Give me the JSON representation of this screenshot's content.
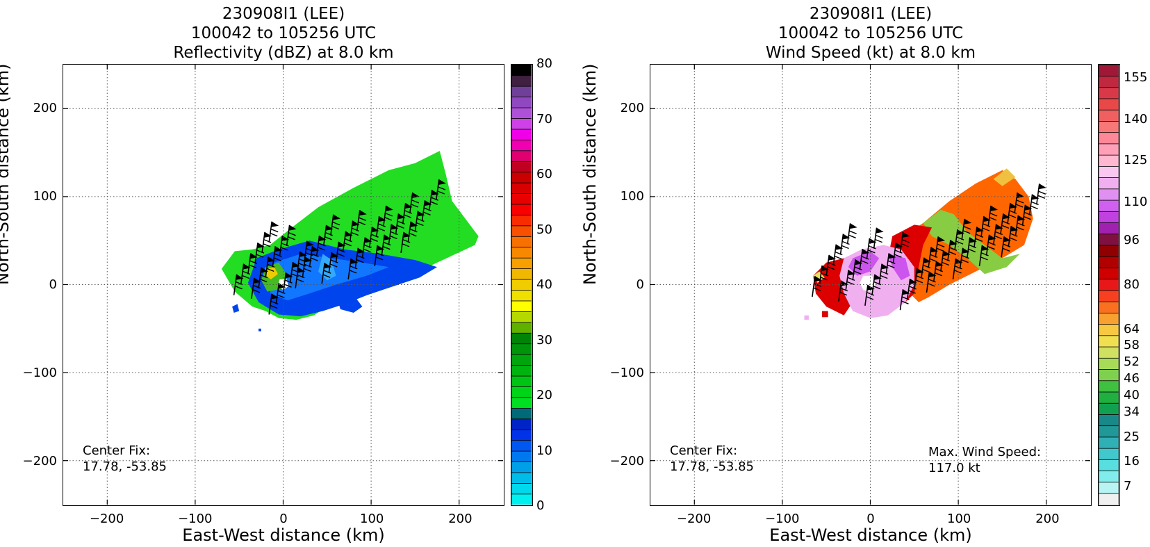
{
  "chart_data": [
    {
      "type": "heatmap",
      "title": [
        "230908I1 (LEE)",
        "100042 to 105256 UTC",
        "Reflectivity (dBZ) at 8.0 km"
      ],
      "xlabel": "East-West distance (km)",
      "ylabel": "North-South distance (km)",
      "xlim": [
        -250,
        250
      ],
      "ylim": [
        -250,
        250
      ],
      "xticks": [
        -200,
        -100,
        0,
        100,
        200
      ],
      "yticks": [
        -200,
        -100,
        0,
        100,
        200
      ],
      "xtick_labels": [
        "−200",
        "−100",
        "0",
        "100",
        "200"
      ],
      "ytick_labels": [
        "−200",
        "−100",
        "0",
        "100",
        "200"
      ],
      "grid": true,
      "annotations": [
        {
          "lines": [
            "Center Fix:",
            "17.78, -53.85"
          ],
          "position": "bottom-left"
        }
      ],
      "colorbar": {
        "range": [
          0,
          80
        ],
        "tick_values": [
          0,
          10,
          20,
          30,
          40,
          50,
          60,
          70,
          80
        ],
        "tick_labels": [
          "0",
          "10",
          "20",
          "30",
          "40",
          "50",
          "60",
          "70",
          "80"
        ],
        "colors": [
          "#00f0f0",
          "#00d8ec",
          "#00bce8",
          "#00a0e8",
          "#0078f0",
          "#0058f0",
          "#0032e8",
          "#0024c8",
          "#006a78",
          "#00e020",
          "#00d418",
          "#00c414",
          "#00b410",
          "#00a40c",
          "#00940a",
          "#008408",
          "#60b000",
          "#b4d800",
          "#ffff00",
          "#f0e000",
          "#f0cc00",
          "#f0b800",
          "#f8a000",
          "#f88800",
          "#f87000",
          "#f85000",
          "#f82c00",
          "#f80000",
          "#e80000",
          "#d80000",
          "#c80000",
          "#c00020",
          "#e00070",
          "#f000b0",
          "#f000e8",
          "#d040e8",
          "#b050d8",
          "#9048c0",
          "#704098",
          "#402040",
          "#000000"
        ]
      },
      "regions": [
        {
          "color": "#22dd22",
          "points": [
            [
              -70,
              18
            ],
            [
              -55,
              38
            ],
            [
              -35,
              40
            ],
            [
              -15,
              45
            ],
            [
              10,
              65
            ],
            [
              40,
              88
            ],
            [
              80,
              110
            ],
            [
              120,
              130
            ],
            [
              150,
              138
            ],
            [
              178,
              152
            ],
            [
              185,
              125
            ],
            [
              192,
              95
            ],
            [
              222,
              55
            ],
            [
              218,
              45
            ],
            [
              190,
              32
            ],
            [
              160,
              18
            ],
            [
              130,
              5
            ],
            [
              100,
              -10
            ],
            [
              75,
              -20
            ],
            [
              50,
              -25
            ],
            [
              35,
              -35
            ],
            [
              15,
              -40
            ],
            [
              -5,
              -38
            ],
            [
              -20,
              -30
            ],
            [
              -35,
              -25
            ],
            [
              -55,
              -8
            ]
          ]
        },
        {
          "color": "#0044ee",
          "points": [
            [
              -30,
              30
            ],
            [
              -5,
              40
            ],
            [
              30,
              50
            ],
            [
              70,
              40
            ],
            [
              110,
              35
            ],
            [
              150,
              28
            ],
            [
              175,
              20
            ],
            [
              155,
              8
            ],
            [
              125,
              -2
            ],
            [
              95,
              -12
            ],
            [
              70,
              -22
            ],
            [
              45,
              -30
            ],
            [
              20,
              -36
            ],
            [
              -5,
              -34
            ],
            [
              -28,
              -20
            ],
            [
              -40,
              2
            ]
          ]
        },
        {
          "color": "#1177ff",
          "points": [
            [
              -10,
              25
            ],
            [
              20,
              35
            ],
            [
              55,
              30
            ],
            [
              90,
              25
            ],
            [
              120,
              20
            ],
            [
              95,
              10
            ],
            [
              60,
              0
            ],
            [
              30,
              -10
            ],
            [
              5,
              -18
            ],
            [
              -15,
              -10
            ]
          ]
        },
        {
          "color": "#33aaff",
          "points": [
            [
              45,
              35
            ],
            [
              55,
              28
            ],
            [
              60,
              10
            ],
            [
              50,
              5
            ],
            [
              40,
              15
            ]
          ]
        },
        {
          "color": "#0044ee",
          "points": [
            [
              60,
              -10
            ],
            [
              75,
              -5
            ],
            [
              90,
              -25
            ],
            [
              80,
              -32
            ],
            [
              65,
              -28
            ]
          ]
        },
        {
          "color": "#44bb22",
          "points": [
            [
              -20,
              20
            ],
            [
              -5,
              25
            ],
            [
              5,
              10
            ],
            [
              -2,
              -5
            ],
            [
              -18,
              -8
            ],
            [
              -25,
              5
            ]
          ]
        },
        {
          "color": "#eecc00",
          "points": [
            [
              -18,
              18
            ],
            [
              -10,
              20
            ],
            [
              -6,
              12
            ],
            [
              -14,
              6
            ],
            [
              -20,
              10
            ]
          ]
        },
        {
          "color": "#ffffff",
          "points": [
            [
              -4,
              6
            ],
            [
              4,
              6
            ],
            [
              6,
              -2
            ],
            [
              0,
              -6
            ],
            [
              -6,
              -2
            ]
          ]
        },
        {
          "color": "#0044ee",
          "points": [
            [
              -58,
              -25
            ],
            [
              -52,
              -22
            ],
            [
              -50,
              -30
            ],
            [
              -56,
              -32
            ]
          ]
        },
        {
          "color": "#0044ee",
          "points": [
            [
              -28,
              -50
            ],
            [
              -25,
              -50
            ],
            [
              -25,
              -53
            ],
            [
              -28,
              -53
            ]
          ]
        }
      ],
      "barb_rows": [
        [
          -40,
          12
        ],
        [
          -20,
          8
        ],
        [
          0,
          -10
        ],
        [
          30,
          20
        ],
        [
          60,
          25
        ],
        [
          90,
          30
        ],
        [
          120,
          45
        ],
        [
          150,
          60
        ]
      ]
    },
    {
      "type": "heatmap",
      "title": [
        "230908I1 (LEE)",
        "100042 to 105256 UTC",
        "Wind Speed (kt) at 8.0 km"
      ],
      "xlabel": "East-West distance (km)",
      "ylabel": "North-South distance (km)",
      "xlim": [
        -250,
        250
      ],
      "ylim": [
        -250,
        250
      ],
      "xticks": [
        -200,
        -100,
        0,
        100,
        200
      ],
      "yticks": [
        -200,
        -100,
        0,
        100,
        200
      ],
      "xtick_labels": [
        "−200",
        "−100",
        "0",
        "100",
        "200"
      ],
      "ytick_labels": [
        "−200",
        "−100",
        "0",
        "100",
        "200"
      ],
      "grid": true,
      "annotations": [
        {
          "lines": [
            "Center Fix:",
            "17.78, -53.85"
          ],
          "position": "bottom-left"
        },
        {
          "lines": [
            "Max. Wind Speed:",
            "117.0 kt"
          ],
          "position": "bottom-right"
        }
      ],
      "colorbar": {
        "range": [
          0,
          160
        ],
        "tick_values": [
          7,
          16,
          25,
          34,
          40,
          46,
          52,
          58,
          64,
          80,
          96,
          110,
          125,
          140,
          155
        ],
        "tick_labels": [
          "7",
          "16",
          "25",
          "34",
          "40",
          "46",
          "52",
          "58",
          "64",
          "80",
          "96",
          "110",
          "125",
          "140",
          "155"
        ],
        "colors": [
          "#f0f0f0",
          "#b8f4f4",
          "#80ecec",
          "#58dede",
          "#40c8cc",
          "#30b0b4",
          "#209898",
          "#188888",
          "#10a050",
          "#20b040",
          "#40c040",
          "#80d050",
          "#a8dc58",
          "#d0e060",
          "#f0e050",
          "#f8c840",
          "#f8a030",
          "#f87020",
          "#f84020",
          "#e81818",
          "#d00000",
          "#b00000",
          "#900000",
          "#801040",
          "#a020b0",
          "#c040e0",
          "#d060f0",
          "#e090f0",
          "#f0b0f0",
          "#f8c8f0",
          "#ffb8d0",
          "#ffa0b8",
          "#ff8898",
          "#f87878",
          "#f06060",
          "#e84848",
          "#d83848",
          "#c02840",
          "#a01838"
        ]
      },
      "regions": [
        {
          "color": "#ff6600",
          "points": [
            [
              30,
              50
            ],
            [
              60,
              70
            ],
            [
              90,
              95
            ],
            [
              120,
              115
            ],
            [
              150,
              130
            ],
            [
              165,
              120
            ],
            [
              180,
              100
            ],
            [
              185,
              75
            ],
            [
              175,
              45
            ],
            [
              150,
              30
            ],
            [
              120,
              15
            ],
            [
              90,
              0
            ],
            [
              65,
              -15
            ],
            [
              55,
              -20
            ],
            [
              45,
              -10
            ],
            [
              35,
              15
            ]
          ]
        },
        {
          "color": "#88cc44",
          "points": [
            [
              60,
              70
            ],
            [
              80,
              85
            ],
            [
              95,
              80
            ],
            [
              110,
              60
            ],
            [
              130,
              45
            ],
            [
              150,
              30
            ],
            [
              170,
              35
            ],
            [
              155,
              20
            ],
            [
              130,
              12
            ],
            [
              110,
              30
            ],
            [
              90,
              45
            ],
            [
              70,
              55
            ]
          ]
        },
        {
          "color": "#f0c040",
          "points": [
            [
              140,
              120
            ],
            [
              155,
              132
            ],
            [
              165,
              122
            ],
            [
              150,
              112
            ]
          ]
        },
        {
          "color": "#dd0000",
          "points": [
            [
              25,
              55
            ],
            [
              50,
              68
            ],
            [
              70,
              65
            ],
            [
              60,
              45
            ],
            [
              55,
              20
            ],
            [
              50,
              -10
            ],
            [
              40,
              -20
            ],
            [
              30,
              0
            ],
            [
              20,
              30
            ]
          ]
        },
        {
          "color": "#dd0000",
          "points": [
            [
              -65,
              10
            ],
            [
              -50,
              25
            ],
            [
              -30,
              30
            ],
            [
              -20,
              20
            ],
            [
              -25,
              0
            ],
            [
              -20,
              -20
            ],
            [
              -30,
              -35
            ],
            [
              -50,
              -25
            ],
            [
              -62,
              -10
            ]
          ]
        },
        {
          "color": "#f0b0f0",
          "points": [
            [
              -30,
              30
            ],
            [
              -10,
              40
            ],
            [
              15,
              45
            ],
            [
              35,
              40
            ],
            [
              50,
              20
            ],
            [
              50,
              0
            ],
            [
              40,
              -20
            ],
            [
              20,
              -35
            ],
            [
              0,
              -38
            ],
            [
              -20,
              -30
            ],
            [
              -30,
              -10
            ],
            [
              -35,
              10
            ]
          ]
        },
        {
          "color": "#cc55ee",
          "points": [
            [
              -20,
              30
            ],
            [
              0,
              38
            ],
            [
              10,
              30
            ],
            [
              0,
              15
            ],
            [
              -15,
              10
            ],
            [
              -25,
              20
            ]
          ]
        },
        {
          "color": "#cc55ee",
          "points": [
            [
              20,
              35
            ],
            [
              40,
              30
            ],
            [
              45,
              10
            ],
            [
              35,
              5
            ],
            [
              25,
              20
            ]
          ]
        },
        {
          "color": "#ffffff",
          "points": [
            [
              -8,
              10
            ],
            [
              2,
              10
            ],
            [
              6,
              0
            ],
            [
              0,
              -8
            ],
            [
              -8,
              -6
            ],
            [
              -12,
              2
            ]
          ]
        },
        {
          "color": "#e8e060",
          "points": [
            [
              -65,
              10
            ],
            [
              -58,
              15
            ],
            [
              -52,
              8
            ],
            [
              -60,
              2
            ]
          ]
        },
        {
          "color": "#dd0000",
          "points": [
            [
              -55,
              -30
            ],
            [
              -48,
              -30
            ],
            [
              -48,
              -37
            ],
            [
              -55,
              -37
            ]
          ]
        },
        {
          "color": "#f0b0f0",
          "points": [
            [
              -75,
              -35
            ],
            [
              -70,
              -35
            ],
            [
              -70,
              -40
            ],
            [
              -75,
              -40
            ]
          ]
        }
      ],
      "barb_rows": [
        [
          -50,
          10
        ],
        [
          -20,
          5
        ],
        [
          10,
          0
        ],
        [
          50,
          -5
        ],
        [
          80,
          15
        ],
        [
          110,
          30
        ],
        [
          140,
          45
        ],
        [
          165,
          55
        ]
      ]
    }
  ]
}
